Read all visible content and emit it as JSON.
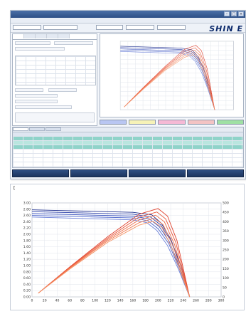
{
  "app": {
    "title": "",
    "brand": "SHIN E",
    "menu": [
      "",
      "",
      ""
    ]
  },
  "toolbar": {
    "fields": [
      "",
      "",
      "",
      "",
      ""
    ]
  },
  "bottom_tabs": [
    "",
    "",
    "",
    ""
  ],
  "buttons": [
    "",
    "",
    "",
    "",
    ""
  ],
  "panel_label": "[",
  "chart_data": {
    "type": "line",
    "title": "",
    "xlabel": "",
    "ylabel_left": "",
    "ylabel_right": "",
    "x_ticks": [
      "0",
      "20",
      "40",
      "60",
      "80",
      "100",
      "120",
      "140",
      "160",
      "180",
      "200",
      "220",
      "240",
      "260",
      "280",
      "300"
    ],
    "y_left_ticks": [
      "0.00",
      "0.20",
      "0.40",
      "0.60",
      "0.80",
      "1.00",
      "1.20",
      "1.40",
      "1.60",
      "1.80",
      "2.00",
      "2.20",
      "2.40",
      "2.60",
      "2.80",
      "3.00"
    ],
    "y_right_ticks": [
      "0",
      "50",
      "100",
      "150",
      "200",
      "250",
      "300",
      "350",
      "400",
      "450",
      "500"
    ],
    "xlim": [
      0,
      300
    ],
    "ylim_left": [
      0,
      3.0
    ],
    "ylim_right": [
      0,
      500
    ],
    "grid": true,
    "series_colors": {
      "current": "#2b3fa8",
      "power": "#e0402c"
    },
    "current_series": [
      {
        "x": [
          0,
          160,
          190,
          205,
          220,
          235,
          250
        ],
        "y": [
          2.78,
          2.7,
          2.62,
          2.35,
          1.85,
          1.05,
          0.0
        ]
      },
      {
        "x": [
          0,
          160,
          188,
          204,
          220,
          236,
          250
        ],
        "y": [
          2.72,
          2.64,
          2.55,
          2.3,
          1.8,
          1.0,
          0.0
        ]
      },
      {
        "x": [
          0,
          160,
          186,
          202,
          218,
          234,
          250
        ],
        "y": [
          2.66,
          2.58,
          2.49,
          2.24,
          1.76,
          0.97,
          0.0
        ]
      },
      {
        "x": [
          0,
          160,
          184,
          200,
          217,
          233,
          250
        ],
        "y": [
          2.6,
          2.52,
          2.43,
          2.18,
          1.7,
          0.93,
          0.0
        ]
      },
      {
        "x": [
          0,
          160,
          182,
          198,
          215,
          232,
          250
        ],
        "y": [
          2.55,
          2.46,
          2.37,
          2.12,
          1.64,
          0.9,
          0.0
        ]
      }
    ],
    "power_series": [
      {
        "x": [
          10,
          60,
          120,
          170,
          200,
          215,
          230,
          250
        ],
        "y": [
          20,
          160,
          320,
          440,
          470,
          430,
          300,
          0
        ]
      },
      {
        "x": [
          10,
          60,
          120,
          170,
          198,
          212,
          228,
          250
        ],
        "y": [
          20,
          158,
          312,
          425,
          452,
          415,
          290,
          0
        ]
      },
      {
        "x": [
          10,
          60,
          120,
          170,
          196,
          210,
          226,
          250
        ],
        "y": [
          20,
          155,
          305,
          410,
          435,
          400,
          280,
          0
        ]
      },
      {
        "x": [
          10,
          60,
          120,
          170,
          194,
          208,
          224,
          250
        ],
        "y": [
          20,
          152,
          298,
          395,
          418,
          385,
          270,
          0
        ]
      },
      {
        "x": [
          10,
          60,
          120,
          170,
          192,
          206,
          222,
          250
        ],
        "y": [
          20,
          148,
          290,
          382,
          402,
          370,
          260,
          0
        ]
      }
    ]
  }
}
